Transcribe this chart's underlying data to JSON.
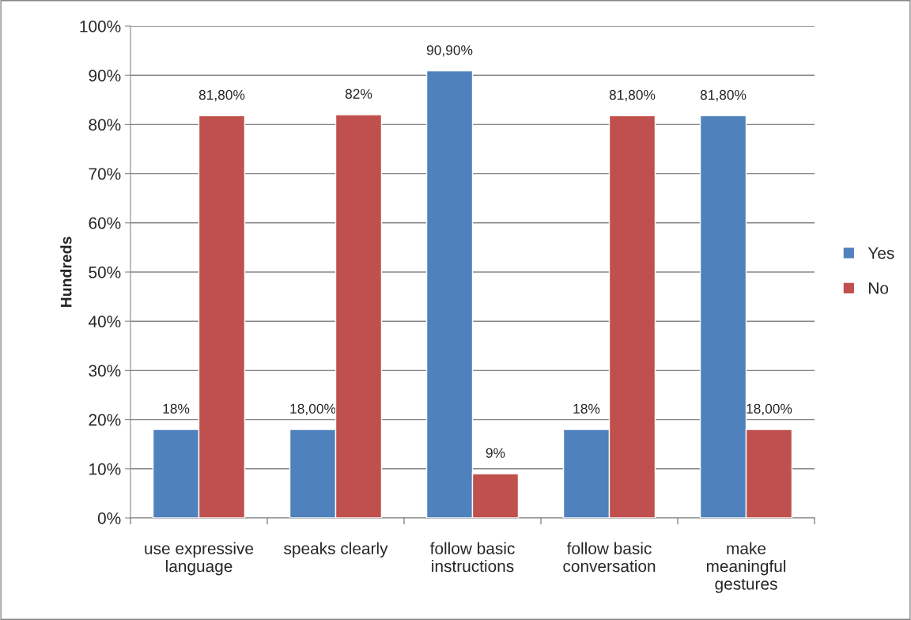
{
  "chart_data": {
    "type": "bar",
    "ylabel": "Hundreds",
    "categories": [
      "use expressive\nlanguage",
      "speaks clearly",
      "follow basic\ninstructions",
      "follow basic\nconversation",
      "make\nmeaningful\ngestures"
    ],
    "series": [
      {
        "name": "Yes",
        "color": "#4f81bd",
        "values": [
          18,
          18,
          90.9,
          18,
          81.8
        ],
        "value_labels": [
          "18%",
          "18,00%",
          "90,90%",
          "18%",
          "81,80%"
        ]
      },
      {
        "name": "No",
        "color": "#c0504d",
        "values": [
          81.8,
          82,
          9,
          81.8,
          18
        ],
        "value_labels": [
          "81,80%",
          "82%",
          "9%",
          "81,80%",
          "18,00%"
        ]
      }
    ],
    "ylim": [
      0,
      100
    ],
    "yticks": [
      {
        "value": 0,
        "label": "0%"
      },
      {
        "value": 10,
        "label": "10%"
      },
      {
        "value": 20,
        "label": "20%"
      },
      {
        "value": 30,
        "label": "30%"
      },
      {
        "value": 40,
        "label": "40%"
      },
      {
        "value": 50,
        "label": "50%"
      },
      {
        "value": 60,
        "label": "60%"
      },
      {
        "value": 70,
        "label": "70%"
      },
      {
        "value": 80,
        "label": "80%"
      },
      {
        "value": 90,
        "label": "90%"
      },
      {
        "value": 100,
        "label": "100%"
      }
    ],
    "grid": "y",
    "legend": "right"
  }
}
